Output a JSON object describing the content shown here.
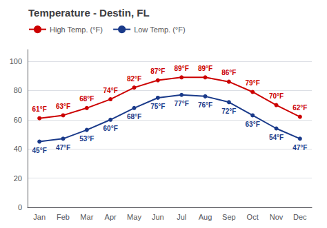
{
  "chart_data": {
    "type": "line",
    "title": "Temperature - Destin, FL",
    "categories": [
      "Jan",
      "Feb",
      "Mar",
      "Apr",
      "May",
      "Jun",
      "Jul",
      "Aug",
      "Sep",
      "Oct",
      "Nov",
      "Dec"
    ],
    "series": [
      {
        "name": "High Temp. (°F)",
        "color": "#cc0000",
        "values": [
          61,
          63,
          68,
          74,
          82,
          87,
          89,
          89,
          86,
          79,
          70,
          62
        ],
        "value_labels": [
          "61°F",
          "63°F",
          "68°F",
          "74°F",
          "82°F",
          "87°F",
          "89°F",
          "89°F",
          "86°F",
          "79°F",
          "70°F",
          "62°F"
        ]
      },
      {
        "name": "Low Temp. (°F)",
        "color": "#1a3a8a",
        "values": [
          45,
          47,
          53,
          60,
          68,
          75,
          77,
          76,
          72,
          63,
          54,
          47
        ],
        "value_labels": [
          "45°F",
          "47°F",
          "53°F",
          "60°F",
          "68°F",
          "75°F",
          "77°F",
          "76°F",
          "72°F",
          "63°F",
          "54°F",
          "47°F"
        ]
      }
    ],
    "ylim": [
      0,
      108
    ],
    "yticks": [
      0,
      20,
      40,
      60,
      80,
      100
    ],
    "grid": true,
    "legend": "upper left",
    "data_labels": true,
    "marker": "circle"
  }
}
